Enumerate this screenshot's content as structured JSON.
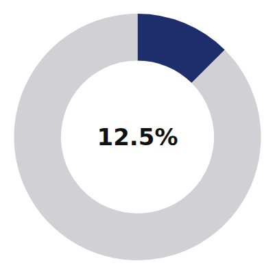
{
  "chart_data": {
    "type": "donut",
    "values": [
      12.5,
      87.5
    ],
    "colors": [
      "#1e2d6b",
      "#d0d0d5"
    ],
    "annotations": [
      "12.5%"
    ]
  }
}
